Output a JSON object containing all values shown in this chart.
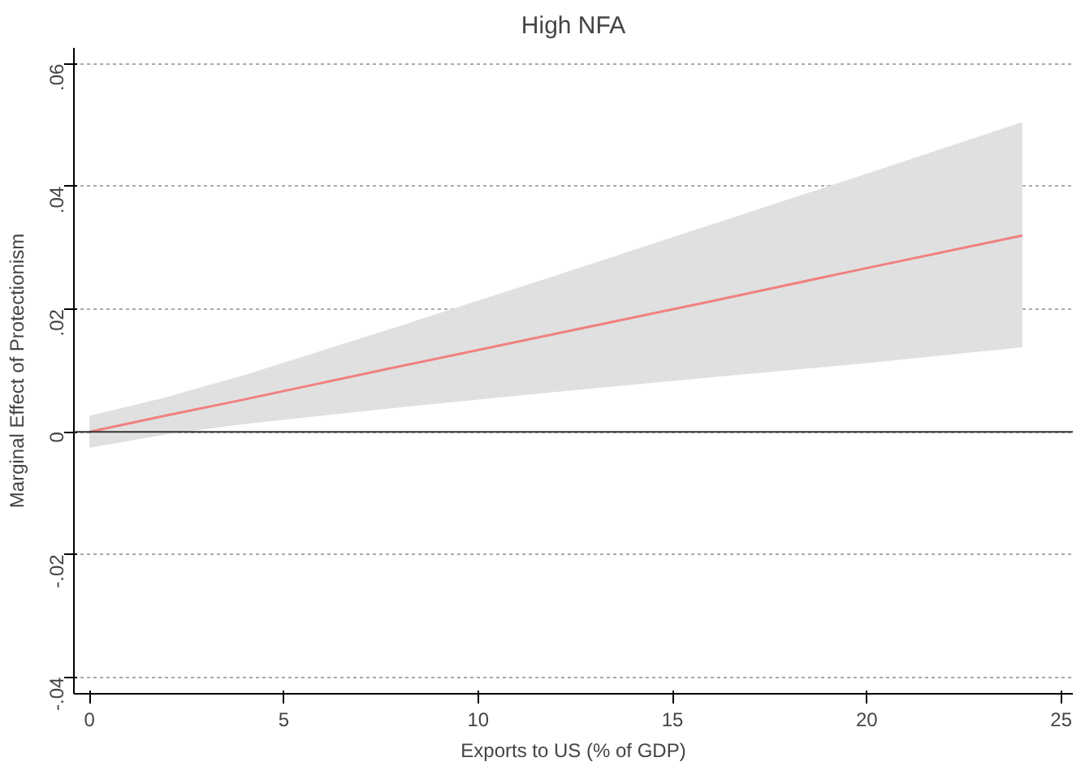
{
  "chart_data": {
    "type": "line",
    "title": "High NFA",
    "xlabel": "Exports to US (% of GDP)",
    "ylabel": "Marginal Effect of Protectionism",
    "series": [
      {
        "color": "#f08080",
        "x": [
          0,
          2,
          4,
          8,
          12,
          16,
          20,
          24
        ],
        "values": [
          0,
          0.0027,
          0.0053,
          0.0107,
          0.016,
          0.0213,
          0.0267,
          0.032
        ],
        "lower": [
          -0.0026,
          -0.0004,
          0.0013,
          0.004,
          0.0065,
          0.0089,
          0.0112,
          0.0138
        ],
        "upper": [
          0.0026,
          0.0057,
          0.0093,
          0.0173,
          0.0255,
          0.0338,
          0.0421,
          0.0505
        ]
      }
    ],
    "xlim": [
      -0.4,
      25.3
    ],
    "ylim": [
      -0.0427,
      0.0626
    ],
    "xticks": [
      0,
      5,
      10,
      15,
      20,
      25
    ],
    "yticks": [
      {
        "value": -0.04,
        "label": "-.04"
      },
      {
        "value": -0.02,
        "label": "-.02"
      },
      {
        "value": 0,
        "label": "0"
      },
      {
        "value": 0.02,
        "label": ".02"
      },
      {
        "value": 0.04,
        "label": ".04"
      },
      {
        "value": 0.06,
        "label": ".06"
      }
    ],
    "ref_lines": [
      {
        "axis": "y",
        "value": 0,
        "color": "#333333"
      }
    ],
    "grid": "y"
  }
}
